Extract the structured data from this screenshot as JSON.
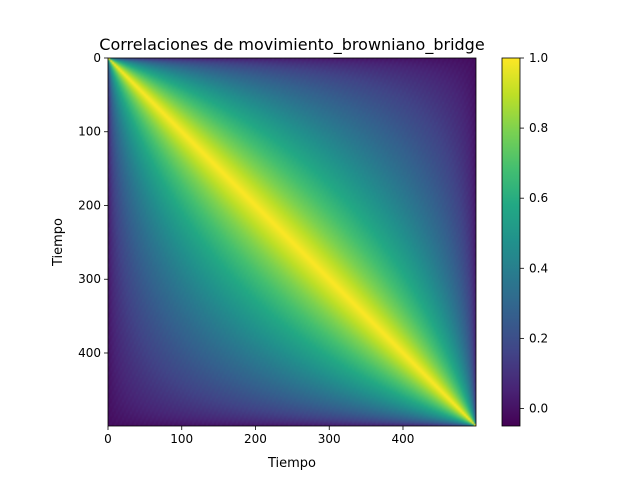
{
  "chart_data": {
    "type": "heatmap",
    "title": "Correlaciones de movimiento_browniano_bridge",
    "xlabel": "Tiempo",
    "ylabel": "Tiempo",
    "n": 500,
    "xlim": [
      0,
      499
    ],
    "ylim": [
      499,
      0
    ],
    "x_ticks": [
      "0",
      "100",
      "200",
      "300",
      "400"
    ],
    "y_ticks": [
      "0",
      "100",
      "200",
      "300",
      "400"
    ],
    "x_tick_values": [
      0,
      100,
      200,
      300,
      400
    ],
    "y_tick_values": [
      0,
      100,
      200,
      300,
      400
    ],
    "colorbar": {
      "min": -0.05,
      "max": 1.0,
      "ticks": [
        "0.0",
        "0.2",
        "0.4",
        "0.6",
        "0.8",
        "1.0"
      ],
      "tick_values": [
        0.0,
        0.2,
        0.4,
        0.6,
        0.8,
        1.0
      ],
      "colormap": "viridis"
    },
    "values_description_formula": "corr(s,t) = sqrt(min(s,t)*(1-max(s,t)) / (max(s,t)*(1-min(s,t)))) with s,t scaled to [0,1]",
    "colors": {
      "low": "#440154",
      "mid": "#21918c",
      "high": "#fde725"
    }
  }
}
